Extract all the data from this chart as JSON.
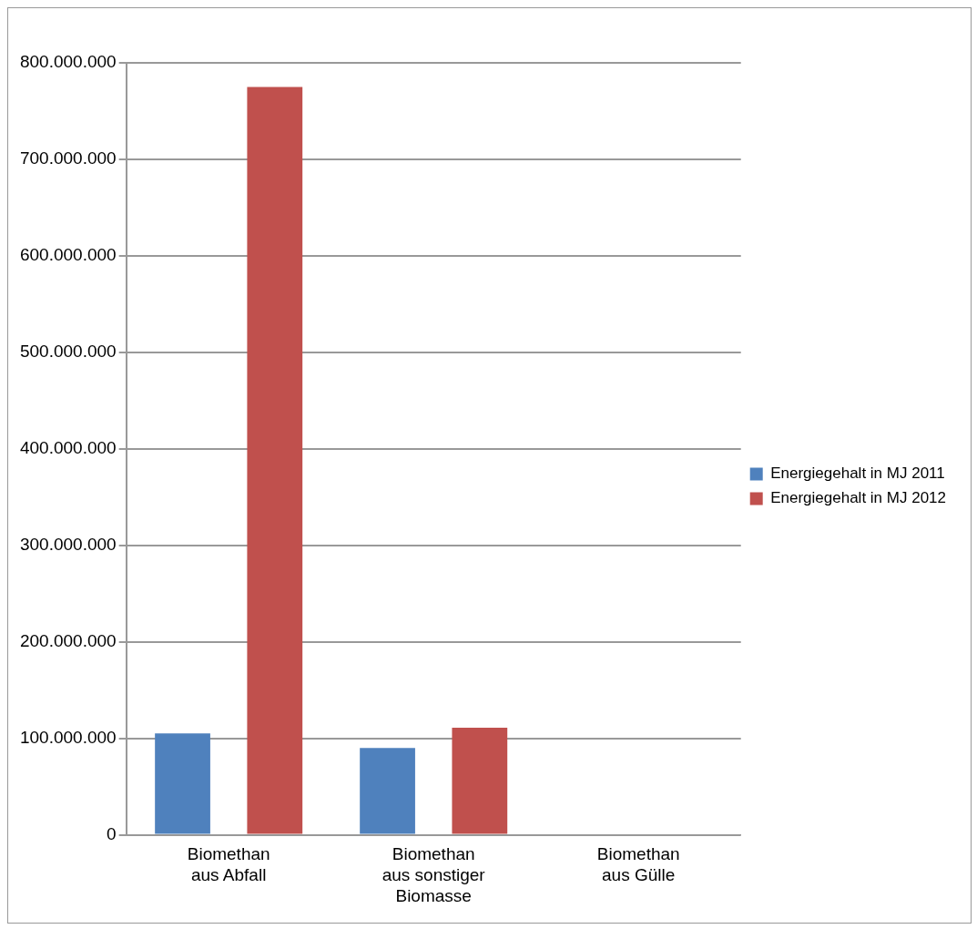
{
  "chart_data": {
    "type": "bar",
    "categories": [
      "Biomethan aus Abfall",
      "Biomethan aus sonstiger Biomasse",
      "Biomethan aus Gülle"
    ],
    "series": [
      {
        "name": "Energiegehalt in MJ 2011",
        "color": "#4f81bd",
        "values": [
          105000000,
          90000000,
          1000000
        ]
      },
      {
        "name": "Energiegehalt in MJ 2012",
        "color": "#c0504d",
        "values": [
          775000000,
          111000000,
          1000000
        ]
      }
    ],
    "ylim": [
      0,
      800000000
    ],
    "yticks": [
      {
        "value": 0,
        "label": "0"
      },
      {
        "value": 100000000,
        "label": "100.000.000"
      },
      {
        "value": 200000000,
        "label": "200.000.000"
      },
      {
        "value": 300000000,
        "label": "300.000.000"
      },
      {
        "value": 400000000,
        "label": "400.000.000"
      },
      {
        "value": 500000000,
        "label": "500.000.000"
      },
      {
        "value": 600000000,
        "label": "600.000.000"
      },
      {
        "value": 700000000,
        "label": "700.000.000"
      },
      {
        "value": 800000000,
        "label": "800.000.000"
      }
    ],
    "grid": "y",
    "legend": "right"
  }
}
